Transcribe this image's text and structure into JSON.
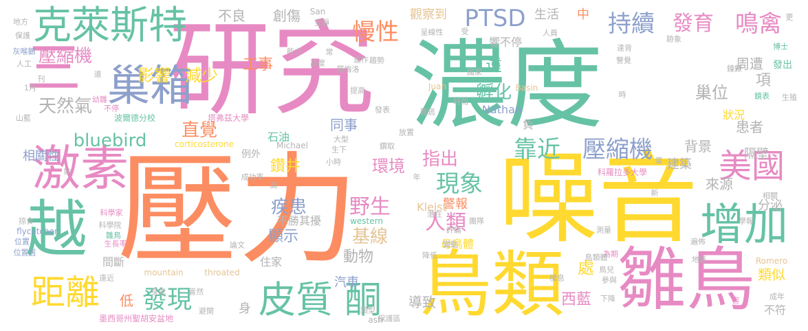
{
  "palette": {
    "orange": "#f4a582",
    "coral": "#fc8d62",
    "green": "#66c2a5",
    "pink": "#e78ac3",
    "blue": "#8da0cb",
    "yellow": "#ffd92f",
    "lime": "#a6d854",
    "tan": "#e5c494",
    "gray": "#b3b3b3"
  },
  "words": [
    "研究",
    "濃度",
    "壓力",
    "噪音",
    "鳥類",
    "雛鳥",
    "激素",
    "越",
    "三",
    "巢箱",
    "克萊斯特",
    "距離",
    "增加",
    "皮質",
    "酮",
    "美國",
    "PTSD",
    "慢性",
    "持續",
    "發育",
    "鳴禽",
    "靠近",
    "壓縮機",
    "壓縮機",
    "環境",
    "野生",
    "指出",
    "人類",
    "現象",
    "發現",
    "影響",
    "減少",
    "天然氣",
    "直覺",
    "bluebird",
    "疾患",
    "基線",
    "動物",
    "顯示",
    "工事",
    "孵化",
    "遠",
    "項",
    "巢位",
    "周遭",
    "患者",
    "背景",
    "不良",
    "創傷",
    "觀察到",
    "生活",
    "中",
    "鑽井",
    "同事",
    "相關性",
    "處",
    "類似",
    "西藍",
    "低",
    "身",
    "導致",
    "汽車",
    "來源",
    "分泌",
    "建築",
    "隔壁",
    "警報",
    "母鳥體",
    "狀況",
    "間斷",
    "住家",
    "不勝其擾",
    "不符",
    "負",
    "響不停",
    "Nathan",
    "石油",
    "例外",
    "Kleist",
    "Michael",
    "corticosterone",
    "western",
    "mountain",
    "throated",
    "flycatcher",
    "Romero",
    "Juan",
    "Basin",
    "San",
    "ash",
    "波爾德分校",
    "塔弗茲大學",
    "科羅拉多大學",
    "墨西哥州聖胡安盆地",
    "科學家",
    "科學院",
    "生長率",
    "幼雛",
    "雛鳥",
    "不停",
    "發出",
    "博士",
    "鏡表",
    "生殖",
    "學報",
    "地區",
    "為期",
    "下降",
    "成年",
    "害",
    "鳥類體",
    "鳥兒",
    "參與",
    "棲息",
    "評論",
    "團隊",
    "潛在",
    "降低",
    "變動",
    "論文",
    "遠近",
    "位置",
    "位置居",
    "掠食",
    "人工",
    "灰喉鵝",
    "保護",
    "地方",
    "山藍",
    "1月",
    "刊",
    "妙",
    "成功率",
    "高",
    "小時",
    "年",
    "大型",
    "生下",
    "鑽取",
    "發表",
    "難逃",
    "放置",
    "時間",
    "時",
    "人員",
    "跡象",
    "國家",
    "趨勢",
    "羅梅洛",
    "運作",
    "高度",
    "能力",
    "常",
    "安靜",
    "呈線性",
    "受",
    "更",
    "提高",
    "警覺",
    "鐘錶",
    "達背",
    "蛋",
    "相關",
    "新",
    "遍佈",
    "身處",
    "嘗然",
    "避開",
    "類型",
    "保護區",
    "道",
    "測量"
  ]
}
